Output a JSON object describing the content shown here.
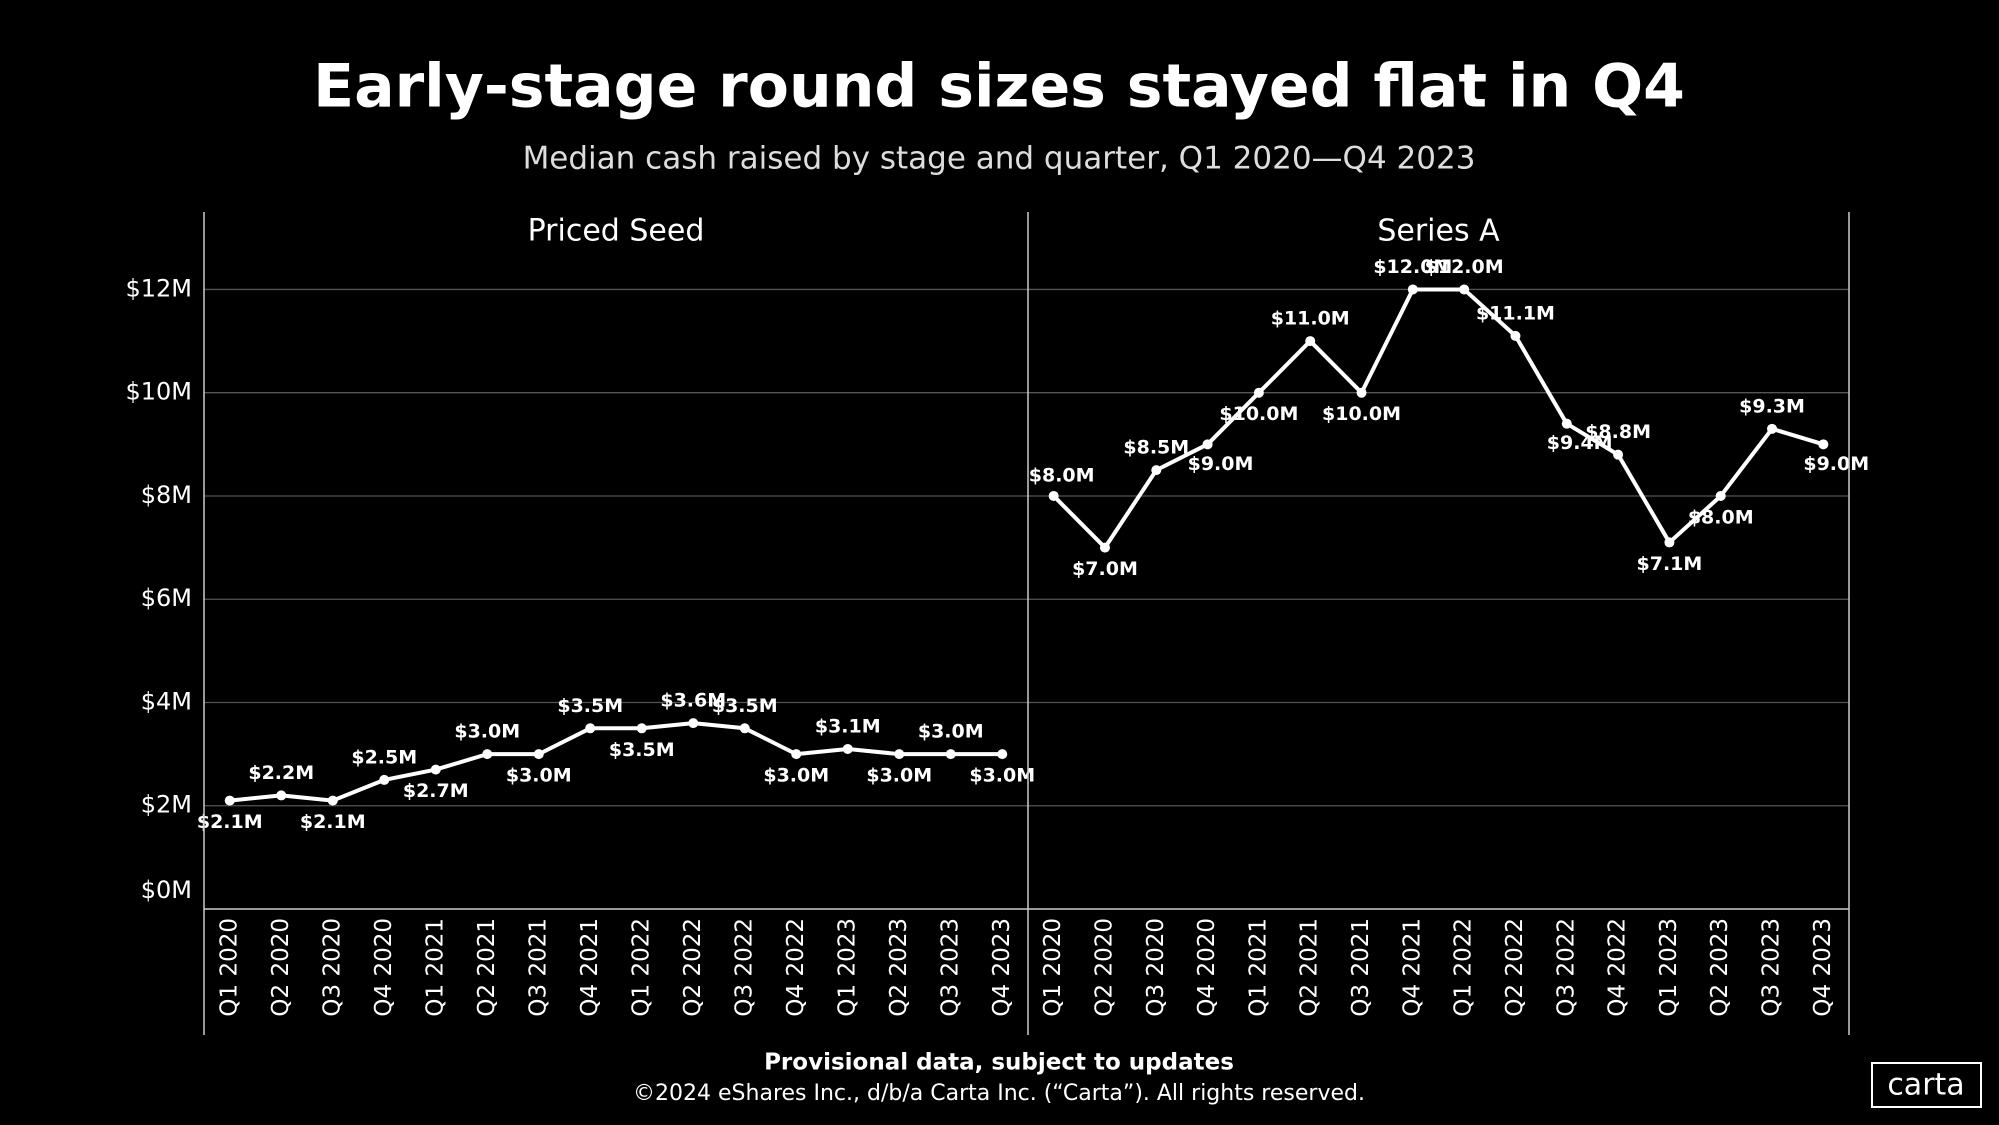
{
  "title": "Early-stage round sizes stayed flat in Q4",
  "subtitle": "Median cash raised by stage and quarter, Q1 2020—Q4 2023",
  "footnote": "Provisional data, subject to updates",
  "copyright": "©2024 eShares Inc., d/b/a Carta Inc. (“Carta”). All rights reserved.",
  "logo": "carta",
  "chart_data": [
    {
      "type": "line",
      "title": "Priced Seed",
      "color": "#ffffff",
      "categories": [
        "Q1 2020",
        "Q2 2020",
        "Q3 2020",
        "Q4 2020",
        "Q1 2021",
        "Q2 2021",
        "Q3 2021",
        "Q4 2021",
        "Q1 2022",
        "Q2 2022",
        "Q3 2022",
        "Q4 2022",
        "Q1 2023",
        "Q2 2023",
        "Q3 2023",
        "Q4 2023"
      ],
      "values": [
        2.1,
        2.2,
        2.1,
        2.5,
        2.7,
        3.0,
        3.0,
        3.5,
        3.5,
        3.6,
        3.5,
        3.0,
        3.1,
        3.0,
        3.0,
        3.0
      ],
      "value_labels": [
        "$2.1M",
        "$2.2M",
        "$2.1M",
        "$2.5M",
        "$2.7M",
        "$3.0M",
        "$3.0M",
        "$3.5M",
        "$3.5M",
        "$3.6M",
        "$3.5M",
        "$3.0M",
        "$3.1M",
        "$3.0M",
        "$3.0M",
        "$3.0M"
      ],
      "ylim": [
        0,
        13.5
      ],
      "yticks": [
        {
          "value": 0,
          "label": "$0M"
        },
        {
          "value": 2,
          "label": "$2M"
        },
        {
          "value": 4,
          "label": "$4M"
        },
        {
          "value": 6,
          "label": "$6M"
        },
        {
          "value": 8,
          "label": "$8M"
        },
        {
          "value": 10,
          "label": "$10M"
        },
        {
          "value": 12,
          "label": "$12M"
        }
      ],
      "grid": true
    },
    {
      "type": "line",
      "title": "Series A",
      "color": "#ffffff",
      "categories": [
        "Q1 2020",
        "Q2 2020",
        "Q3 2020",
        "Q4 2020",
        "Q1 2021",
        "Q2 2021",
        "Q3 2021",
        "Q4 2021",
        "Q1 2022",
        "Q2 2022",
        "Q3 2022",
        "Q4 2022",
        "Q1 2023",
        "Q2 2023",
        "Q3 2023",
        "Q4 2023"
      ],
      "values": [
        8.0,
        7.0,
        8.5,
        9.0,
        10.0,
        11.0,
        10.0,
        12.0,
        12.0,
        11.1,
        9.4,
        8.8,
        7.1,
        8.0,
        9.3,
        9.0
      ],
      "value_labels": [
        "$8.0M",
        "$7.0M",
        "$8.5M",
        "$9.0M",
        "$10.0M",
        "$11.0M",
        "$10.0M",
        "$12.0M",
        "$12.0M",
        "$11.1M",
        "$9.4M",
        "$8.8M",
        "$7.1M",
        "$8.0M",
        "$9.3M",
        "$9.0M"
      ],
      "ylim": [
        0,
        13.5
      ],
      "yticks": [
        {
          "value": 0,
          "label": "$0M"
        },
        {
          "value": 2,
          "label": "$2M"
        },
        {
          "value": 4,
          "label": "$4M"
        },
        {
          "value": 6,
          "label": "$6M"
        },
        {
          "value": 8,
          "label": "$8M"
        },
        {
          "value": 10,
          "label": "$10M"
        },
        {
          "value": 12,
          "label": "$12M"
        }
      ],
      "grid": true
    }
  ]
}
